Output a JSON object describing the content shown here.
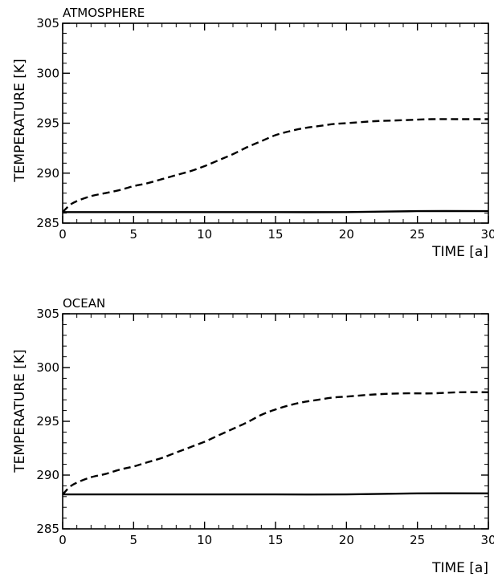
{
  "chart_data": [
    {
      "type": "line",
      "title": "ATMOSPHERE",
      "xlabel": "TIME [a]",
      "ylabel": "TEMPERATURE [K]",
      "xlim": [
        0,
        30
      ],
      "ylim": [
        285,
        305
      ],
      "xticks": [
        0,
        5,
        10,
        15,
        20,
        25,
        30
      ],
      "yticks": [
        285,
        290,
        295,
        300,
        305
      ],
      "grid": false,
      "series": [
        {
          "style": "solid",
          "x": [
            0,
            5,
            10,
            15,
            20,
            25,
            30
          ],
          "y": [
            286.1,
            286.1,
            286.1,
            286.1,
            286.1,
            286.2,
            286.2
          ]
        },
        {
          "style": "dashed",
          "x": [
            0,
            0.5,
            1,
            2,
            3,
            4,
            5,
            6,
            7,
            8,
            9,
            10,
            11,
            12,
            13,
            14,
            15,
            16,
            17,
            18,
            19,
            20,
            22,
            24,
            26,
            28,
            30
          ],
          "y": [
            286.1,
            286.8,
            287.2,
            287.7,
            288.0,
            288.3,
            288.7,
            289.0,
            289.4,
            289.8,
            290.2,
            290.7,
            291.3,
            291.9,
            292.6,
            293.2,
            293.8,
            294.2,
            294.5,
            294.7,
            294.9,
            295.0,
            295.2,
            295.3,
            295.4,
            295.4,
            295.4
          ]
        }
      ]
    },
    {
      "type": "line",
      "title": "OCEAN",
      "xlabel": "TIME [a]",
      "ylabel": "TEMPERATURE [K]",
      "xlim": [
        0,
        30
      ],
      "ylim": [
        285,
        305
      ],
      "xticks": [
        0,
        5,
        10,
        15,
        20,
        25,
        30
      ],
      "yticks": [
        285,
        290,
        295,
        300,
        305
      ],
      "grid": false,
      "series": [
        {
          "style": "solid",
          "x": [
            0,
            5,
            10,
            15,
            20,
            25,
            30
          ],
          "y": [
            288.2,
            288.2,
            288.2,
            288.2,
            288.2,
            288.3,
            288.3
          ]
        },
        {
          "style": "dashed",
          "x": [
            0,
            0.5,
            1,
            2,
            3,
            4,
            5,
            6,
            7,
            8,
            9,
            10,
            11,
            12,
            13,
            14,
            15,
            16,
            17,
            18,
            19,
            20,
            22,
            24,
            26,
            28,
            30
          ],
          "y": [
            288.2,
            288.9,
            289.3,
            289.8,
            290.1,
            290.5,
            290.8,
            291.2,
            291.6,
            292.1,
            292.6,
            293.1,
            293.7,
            294.3,
            294.9,
            295.6,
            296.1,
            296.5,
            296.8,
            297.0,
            297.2,
            297.3,
            297.5,
            297.6,
            297.6,
            297.7,
            297.7
          ]
        }
      ]
    }
  ]
}
